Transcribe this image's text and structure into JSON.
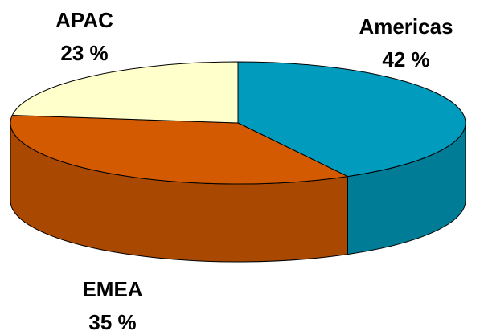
{
  "chart_data": {
    "type": "pie",
    "categories": [
      "Americas",
      "EMEA",
      "APAC"
    ],
    "values": [
      42,
      35,
      23
    ],
    "value_labels": [
      "42 %",
      "35 %",
      "23 %"
    ],
    "colors": [
      "#009bbd",
      "#d35a00",
      "#ffffcc"
    ],
    "style": "3d"
  }
}
